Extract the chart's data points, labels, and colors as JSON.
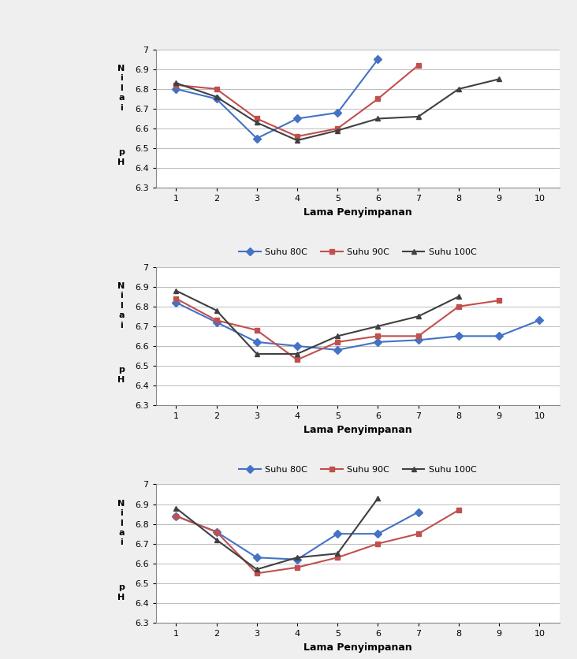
{
  "charts": [
    {
      "suhu80C": [
        6.8,
        6.75,
        6.55,
        6.65,
        6.68,
        6.95,
        null,
        null,
        null,
        null
      ],
      "suhu90C": [
        6.82,
        6.8,
        6.65,
        6.56,
        6.6,
        6.75,
        6.92,
        null,
        null,
        null
      ],
      "suhu100C": [
        6.83,
        6.76,
        6.63,
        6.54,
        6.59,
        6.65,
        6.66,
        6.8,
        6.85,
        null
      ]
    },
    {
      "suhu80C": [
        6.82,
        6.72,
        6.62,
        6.6,
        6.58,
        6.62,
        6.63,
        6.65,
        6.65,
        6.73
      ],
      "suhu90C": [
        6.84,
        6.73,
        6.68,
        6.53,
        6.62,
        6.65,
        6.65,
        6.8,
        6.83,
        null
      ],
      "suhu100C": [
        6.88,
        6.78,
        6.56,
        6.56,
        6.65,
        6.7,
        6.75,
        6.85,
        null,
        null
      ]
    },
    {
      "suhu80C": [
        6.84,
        6.76,
        6.63,
        6.62,
        6.75,
        6.75,
        6.86,
        null,
        null,
        null
      ],
      "suhu90C": [
        6.84,
        6.76,
        6.55,
        6.58,
        6.63,
        6.7,
        6.75,
        6.87,
        null,
        null
      ],
      "suhu100C": [
        6.88,
        6.72,
        6.57,
        6.63,
        6.65,
        6.93,
        null,
        null,
        null,
        null
      ]
    }
  ],
  "x_values": [
    1,
    2,
    3,
    4,
    5,
    6,
    7,
    8,
    9,
    10
  ],
  "xlabel": "Lama Penyimpanan",
  "ylim": [
    6.3,
    7.0
  ],
  "yticks": [
    6.3,
    6.4,
    6.5,
    6.6,
    6.7,
    6.8,
    6.9,
    7.0
  ],
  "xticks": [
    1,
    2,
    3,
    4,
    5,
    6,
    7,
    8,
    9,
    10
  ],
  "color_80": "#4472C4",
  "color_90": "#C0504D",
  "color_100": "#404040",
  "legend_labels": [
    "Suhu 80C",
    "Suhu 90C",
    "Suhu 100C"
  ],
  "bg_color": "#EFEFEF",
  "plot_bg": "#FFFFFF",
  "grid_color": "#BBBBBB",
  "ylabel_upper": "N\ni\nl\na\ni",
  "ylabel_lower": "p\nH"
}
